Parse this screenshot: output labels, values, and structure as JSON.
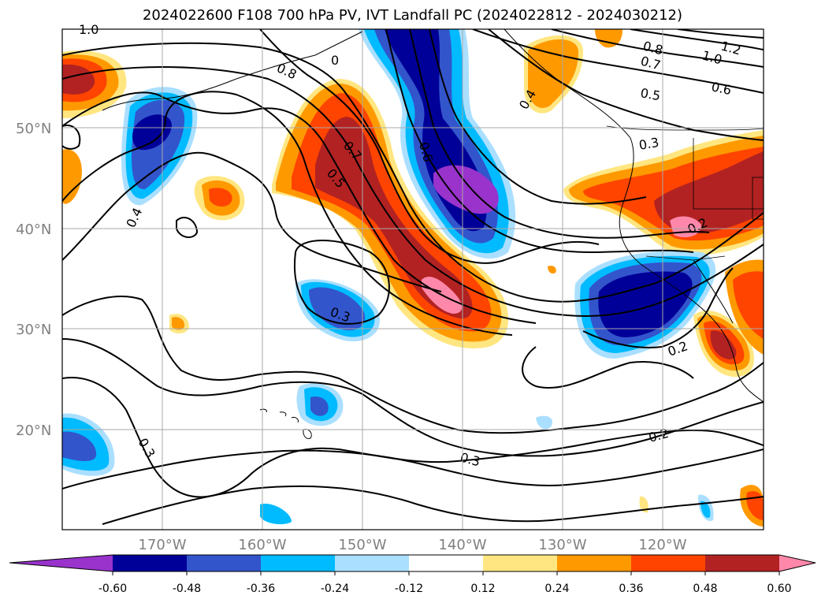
{
  "title": "2024022600 F108 700 hPa PV, IVT Landfall PC (2024022812 - 2024030212)",
  "latitude_labels": [
    "50°N",
    "40°N",
    "30°N",
    "20°N"
  ],
  "longitude_labels": [
    "170°W",
    "160°W",
    "150°W",
    "140°W",
    "130°W",
    "120°W"
  ],
  "colorbar": {
    "ticks": [
      "-0.60",
      "-0.48",
      "-0.36",
      "-0.24",
      "-0.12",
      "0.12",
      "0.24",
      "0.36",
      "0.48",
      "0.60"
    ],
    "colors": [
      "#9933cc",
      "#000099",
      "#3355cc",
      "#00bbff",
      "#aadfff",
      "#ffffff",
      "#ffe680",
      "#ff9900",
      "#ff4400",
      "#b22222",
      "#ff88aa"
    ]
  },
  "contour_labels": [
    "1.0",
    "0.8",
    "0",
    "0.8",
    "0.7",
    "1.0",
    "1.2",
    "0.6",
    "0.5",
    "0.4",
    "0.7",
    "0.6",
    "0.5",
    "0.3",
    "0.4",
    "0.3",
    "0.2",
    "0.2",
    "0.3",
    "0.3",
    "0.2"
  ],
  "legend": []
}
